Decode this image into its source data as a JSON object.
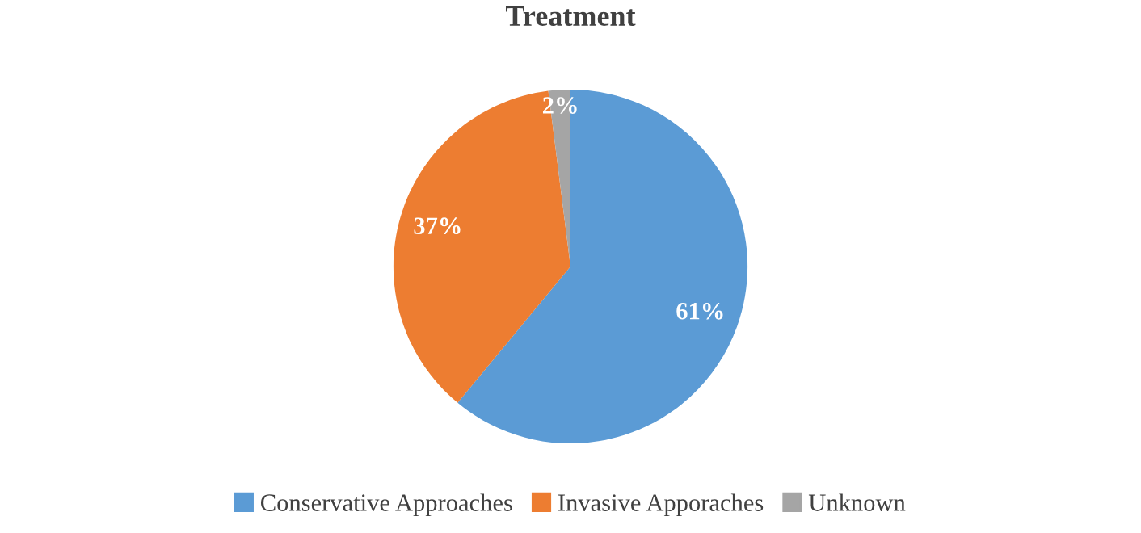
{
  "chart_data": {
    "type": "pie",
    "title": "Treatment",
    "categories": [
      "Conservative Approaches",
      "Invasive Apporaches",
      "Unknown"
    ],
    "values": [
      61,
      37,
      2
    ],
    "colors": [
      "#5b9bd5",
      "#ed7d31",
      "#a5a5a5"
    ],
    "value_labels": [
      "61%",
      "37%",
      "2%"
    ],
    "legend": "bottom"
  }
}
